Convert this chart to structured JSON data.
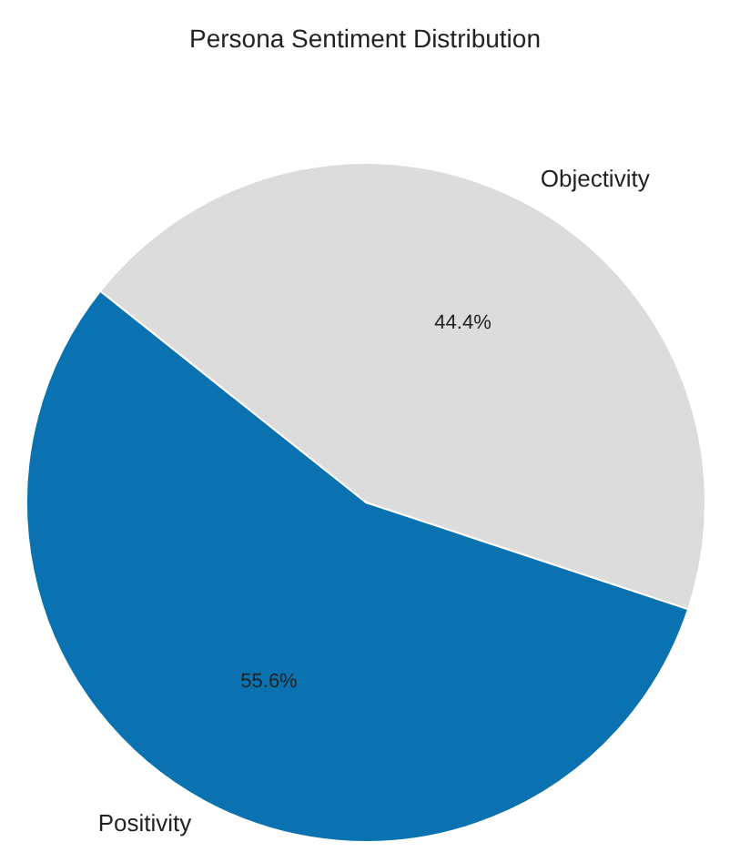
{
  "chart_data": {
    "type": "pie",
    "title": "Persona Sentiment Distribution",
    "categories": [
      "Objectivity",
      "Positivity"
    ],
    "values": [
      44.4,
      55.6
    ],
    "colors": [
      "#dcdcdc",
      "#0a72b0"
    ],
    "value_labels": [
      "44.4%",
      "55.6%"
    ],
    "legend": false
  }
}
